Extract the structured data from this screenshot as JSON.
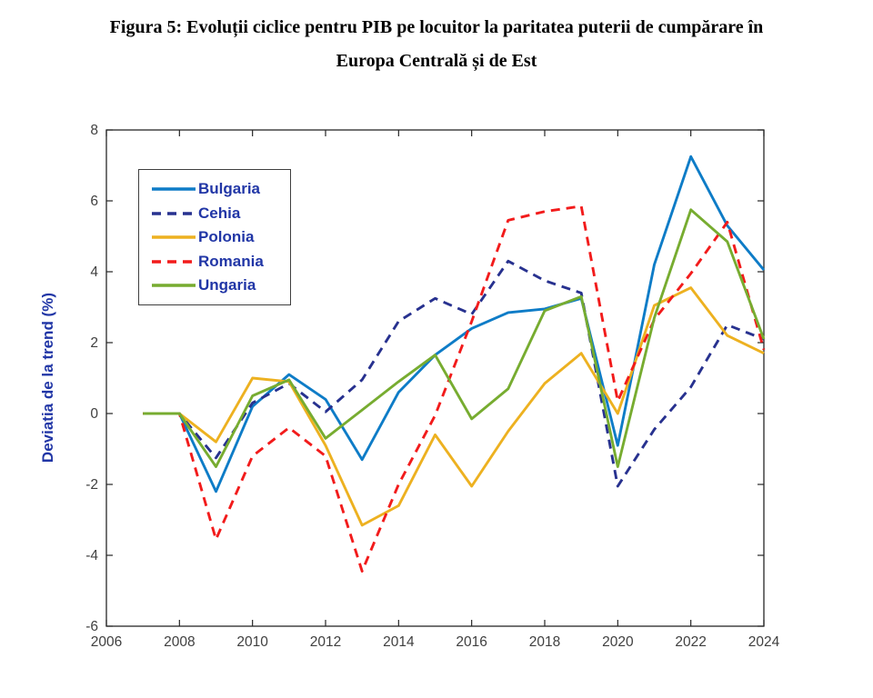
{
  "figure": {
    "title_line1": "Figura 5: Evoluții ciclice pentru PIB pe locuitor la paritatea puterii de cumpărare în",
    "title_line2": "Europa Centrală și de Est"
  },
  "chart_data": {
    "type": "line",
    "title": "Figura 5: Evoluții ciclice pentru PIB pe locuitor la paritatea puterii de cumpărare în Europa Centrală și de Est",
    "xlabel": "",
    "ylabel": "Deviatia de la trend (%)",
    "xlim": [
      2006,
      2024
    ],
    "ylim": [
      -6,
      8
    ],
    "xticks": [
      2006,
      2008,
      2010,
      2012,
      2014,
      2016,
      2018,
      2020,
      2022,
      2024
    ],
    "yticks": [
      -6,
      -4,
      -2,
      0,
      2,
      4,
      6,
      8
    ],
    "grid": false,
    "legend_position": "upper-left-inside",
    "axis_color": "#262626",
    "tick_label_color": "#404040",
    "label_color": "#2136A6",
    "x": [
      2007,
      2008,
      2009,
      2010,
      2011,
      2012,
      2013,
      2014,
      2015,
      2016,
      2017,
      2018,
      2019,
      2020,
      2021,
      2022,
      2023,
      2024
    ],
    "series": [
      {
        "name": "Bulgaria",
        "color": "#0E7CC7",
        "dash": "solid",
        "values": [
          0,
          0,
          -2.2,
          0.2,
          1.1,
          0.4,
          -1.3,
          0.6,
          1.65,
          2.4,
          2.85,
          2.95,
          3.25,
          -0.9,
          4.2,
          7.25,
          5.3,
          4.05
        ]
      },
      {
        "name": "Cehia",
        "color": "#27318F",
        "dash": "dashed",
        "values": [
          0,
          0,
          -1.25,
          0.3,
          0.85,
          0.05,
          0.95,
          2.6,
          3.25,
          2.8,
          4.3,
          3.75,
          3.4,
          -2.05,
          -0.45,
          0.75,
          2.5,
          2.1
        ]
      },
      {
        "name": "Polonia",
        "color": "#EDB120",
        "dash": "solid",
        "values": [
          0,
          0,
          -0.8,
          1.0,
          0.9,
          -0.9,
          -3.15,
          -2.6,
          -0.6,
          -2.05,
          -0.5,
          0.85,
          1.7,
          0.0,
          3.05,
          3.55,
          2.2,
          1.7
        ]
      },
      {
        "name": "Romania",
        "color": "#F21B1B",
        "dash": "dashed",
        "values": [
          0,
          0,
          -3.55,
          -1.2,
          -0.4,
          -1.2,
          -4.45,
          -2.0,
          -0.05,
          2.6,
          5.45,
          5.7,
          5.85,
          0.35,
          2.65,
          3.95,
          5.4,
          1.8
        ]
      },
      {
        "name": "Ungaria",
        "color": "#77AC30",
        "dash": "solid",
        "values": [
          0,
          0,
          -1.5,
          0.5,
          0.95,
          -0.7,
          0.1,
          0.9,
          1.65,
          -0.15,
          0.7,
          2.9,
          3.3,
          -1.5,
          2.7,
          5.75,
          4.85,
          2.1
        ]
      }
    ]
  }
}
